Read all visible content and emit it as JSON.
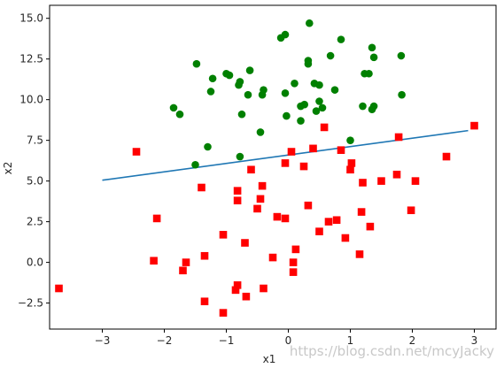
{
  "chart_data": {
    "type": "scatter",
    "xlabel": "x1",
    "ylabel": "x2",
    "xlim": [
      -3.85,
      3.35
    ],
    "ylim": [
      -4.1,
      15.8
    ],
    "xticks": [
      -3,
      -2,
      -1,
      0,
      1,
      2,
      3
    ],
    "xtick_labels": [
      "−3",
      "−2",
      "−1",
      "0",
      "1",
      "2",
      "3"
    ],
    "yticks": [
      -2.5,
      0.0,
      2.5,
      5.0,
      7.5,
      10.0,
      12.5,
      15.0
    ],
    "ytick_labels": [
      "−2.5",
      "0.0",
      "2.5",
      "5.0",
      "7.5",
      "10.0",
      "12.5",
      "15.0"
    ],
    "grid": false,
    "series": [
      {
        "marker": "circle",
        "color": "#008000",
        "points": [
          [
            0.34,
            14.7
          ],
          [
            -0.05,
            14.0
          ],
          [
            -0.12,
            13.8
          ],
          [
            0.85,
            13.7
          ],
          [
            1.35,
            13.2
          ],
          [
            0.32,
            12.4
          ],
          [
            0.32,
            12.2
          ],
          [
            0.68,
            12.7
          ],
          [
            1.38,
            12.6
          ],
          [
            1.82,
            12.7
          ],
          [
            -1.48,
            12.2
          ],
          [
            -0.62,
            11.8
          ],
          [
            -1.0,
            11.6
          ],
          [
            -0.95,
            11.5
          ],
          [
            -1.22,
            11.3
          ],
          [
            1.23,
            11.6
          ],
          [
            1.3,
            11.6
          ],
          [
            0.1,
            11.0
          ],
          [
            0.42,
            11.0
          ],
          [
            0.5,
            10.9
          ],
          [
            -0.8,
            10.9
          ],
          [
            -0.78,
            11.1
          ],
          [
            -1.25,
            10.5
          ],
          [
            -0.4,
            10.6
          ],
          [
            -0.42,
            10.3
          ],
          [
            -0.65,
            10.3
          ],
          [
            -0.05,
            10.4
          ],
          [
            0.75,
            10.6
          ],
          [
            1.83,
            10.3
          ],
          [
            0.5,
            9.9
          ],
          [
            0.2,
            9.6
          ],
          [
            0.26,
            9.7
          ],
          [
            0.45,
            9.3
          ],
          [
            0.55,
            9.5
          ],
          [
            1.35,
            9.4
          ],
          [
            1.2,
            9.6
          ],
          [
            1.38,
            9.6
          ],
          [
            -1.85,
            9.5
          ],
          [
            -1.75,
            9.1
          ],
          [
            -0.75,
            9.1
          ],
          [
            -0.03,
            9.0
          ],
          [
            0.2,
            8.7
          ],
          [
            -0.45,
            8.0
          ],
          [
            -1.3,
            7.1
          ],
          [
            1.0,
            7.5
          ],
          [
            -0.78,
            6.5
          ],
          [
            -1.5,
            6.0
          ]
        ]
      },
      {
        "marker": "square",
        "color": "#ff0000",
        "points": [
          [
            3.0,
            8.4
          ],
          [
            0.58,
            8.3
          ],
          [
            1.78,
            7.7
          ],
          [
            -2.45,
            6.8
          ],
          [
            0.4,
            7.0
          ],
          [
            0.05,
            6.8
          ],
          [
            0.85,
            6.9
          ],
          [
            2.55,
            6.5
          ],
          [
            -0.05,
            6.1
          ],
          [
            1.02,
            6.1
          ],
          [
            0.25,
            5.9
          ],
          [
            -0.6,
            5.7
          ],
          [
            1.0,
            5.7
          ],
          [
            1.75,
            5.4
          ],
          [
            1.5,
            5.0
          ],
          [
            1.2,
            4.9
          ],
          [
            2.05,
            5.0
          ],
          [
            -1.4,
            4.6
          ],
          [
            -0.42,
            4.7
          ],
          [
            -0.82,
            4.4
          ],
          [
            -0.82,
            3.8
          ],
          [
            -0.45,
            3.9
          ],
          [
            0.32,
            3.5
          ],
          [
            -0.5,
            3.3
          ],
          [
            1.18,
            3.1
          ],
          [
            1.98,
            3.2
          ],
          [
            -2.12,
            2.7
          ],
          [
            -0.18,
            2.8
          ],
          [
            -0.05,
            2.7
          ],
          [
            0.78,
            2.6
          ],
          [
            0.65,
            2.5
          ],
          [
            1.32,
            2.2
          ],
          [
            0.5,
            1.9
          ],
          [
            -1.05,
            1.7
          ],
          [
            0.92,
            1.5
          ],
          [
            -0.7,
            1.2
          ],
          [
            0.12,
            0.8
          ],
          [
            1.15,
            0.5
          ],
          [
            -1.35,
            0.4
          ],
          [
            -0.25,
            0.3
          ],
          [
            -2.17,
            0.1
          ],
          [
            -1.65,
            0.0
          ],
          [
            0.08,
            0.0
          ],
          [
            -1.7,
            -0.5
          ],
          [
            0.08,
            -0.6
          ],
          [
            -3.7,
            -1.6
          ],
          [
            -0.4,
            -1.6
          ],
          [
            -0.85,
            -1.7
          ],
          [
            -0.82,
            -1.4
          ],
          [
            -0.68,
            -2.1
          ],
          [
            -1.35,
            -2.4
          ],
          [
            -1.05,
            -3.1
          ]
        ]
      },
      {
        "marker": "line",
        "color": "#1f77b4",
        "points": [
          [
            -3.0,
            5.05
          ],
          [
            2.9,
            8.1
          ]
        ]
      }
    ]
  },
  "watermark": "https://blog.csdn.net/mcyJacky"
}
